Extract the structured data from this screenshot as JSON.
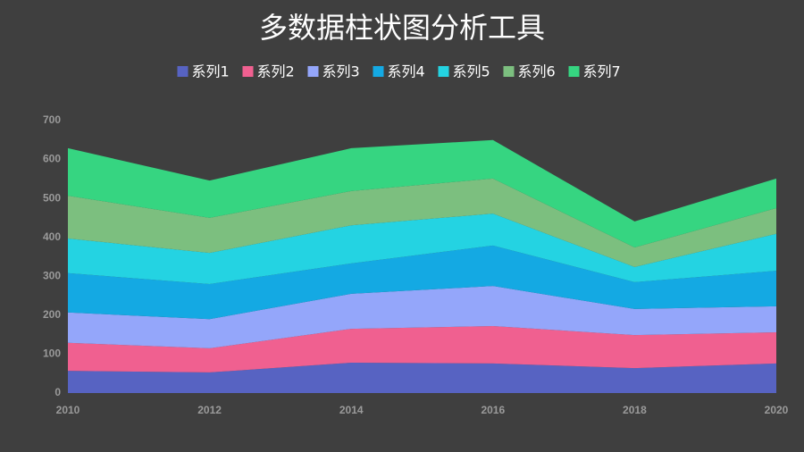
{
  "chart_data": {
    "type": "stacked_area",
    "title": "多数据柱状图分析工具",
    "x": [
      2010,
      2012,
      2014,
      2016,
      2018,
      2020
    ],
    "xlim": [
      2010,
      2020
    ],
    "xticks": [
      2010,
      2012,
      2014,
      2016,
      2018,
      2020
    ],
    "ylim": [
      0,
      700
    ],
    "yticks": [
      0,
      100,
      200,
      300,
      400,
      500,
      600,
      700
    ],
    "grid": false,
    "legend": "top",
    "series": [
      {
        "name": "系列1",
        "color": "#5763c2",
        "values": [
          57,
          53,
          78,
          76,
          64,
          76
        ]
      },
      {
        "name": "系列2",
        "color": "#f06090",
        "values": [
          72,
          62,
          87,
          96,
          85,
          80
        ]
      },
      {
        "name": "系列3",
        "color": "#94a6fa",
        "values": [
          78,
          75,
          90,
          103,
          67,
          67
        ]
      },
      {
        "name": "系列4",
        "color": "#14a9e3",
        "values": [
          101,
          90,
          78,
          104,
          69,
          91
        ]
      },
      {
        "name": "系列5",
        "color": "#24d3e2",
        "values": [
          89,
          80,
          98,
          82,
          39,
          95
        ]
      },
      {
        "name": "系列6",
        "color": "#7cbf7f",
        "values": [
          110,
          90,
          88,
          90,
          50,
          66
        ]
      },
      {
        "name": "系列7",
        "color": "#36d581",
        "values": [
          122,
          96,
          110,
          99,
          67,
          76
        ]
      }
    ]
  }
}
